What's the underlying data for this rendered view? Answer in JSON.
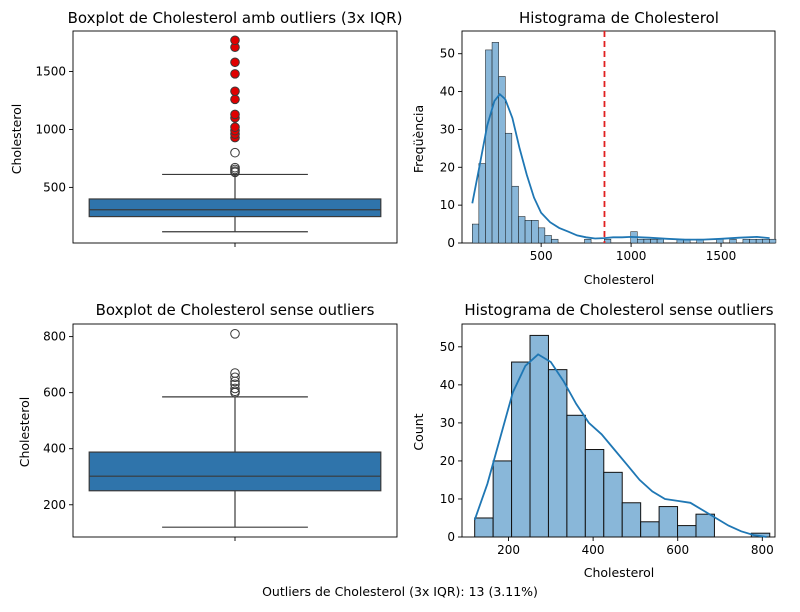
{
  "footer": "Outliers de Cholesterol (3x IQR): 13 (3.11%)",
  "colors": {
    "box": "#2f74ab",
    "hist_fill": "#89b7d9",
    "kde": "#1f77b4",
    "outlier_red": "#e00000",
    "threshold": "#e02020"
  },
  "chart_data": [
    {
      "type": "boxplot",
      "title": "Boxplot de Cholesterol amb outliers (3x IQR)",
      "xlabel": "",
      "ylabel": "Cholesterol",
      "ylim": [
        20,
        1850
      ],
      "yticks": [
        500,
        1000,
        1500
      ],
      "box": {
        "whisker_low": 117,
        "q1": 248,
        "median": 307,
        "q3": 400,
        "whisker_high": 612
      },
      "outliers": [
        630,
        640,
        655,
        670,
        800,
        930,
        960,
        990,
        1020,
        1100,
        1130,
        1260,
        1330,
        1480,
        1580,
        1710,
        1770
      ],
      "outliers_3iqr": [
        930,
        960,
        990,
        1020,
        1100,
        1130,
        1260,
        1330,
        1480,
        1580,
        1710,
        1770
      ]
    },
    {
      "type": "histogram",
      "title": "Histograma de Cholesterol",
      "xlabel": "Cholesterol",
      "ylabel": "Freqüència",
      "xlim": [
        60,
        1800
      ],
      "ylim": [
        0,
        56
      ],
      "xticks": [
        500,
        1000,
        1500
      ],
      "yticks": [
        0,
        10,
        20,
        30,
        40,
        50
      ],
      "bin_start": 117,
      "bin_width": 36.7,
      "counts": [
        5,
        21,
        51,
        53,
        44,
        29,
        15,
        7,
        6,
        6,
        4,
        2,
        1,
        0,
        0,
        0,
        0,
        1,
        0,
        0,
        1,
        0,
        0,
        0,
        3,
        1,
        1,
        1,
        1,
        0,
        0,
        1,
        1,
        0,
        1,
        0,
        0,
        1,
        0,
        1,
        0,
        1,
        1,
        1,
        1,
        1
      ],
      "kde": [
        [
          117,
          10.5
        ],
        [
          160,
          21
        ],
        [
          200,
          31
        ],
        [
          240,
          37.5
        ],
        [
          270,
          39.3
        ],
        [
          300,
          38
        ],
        [
          340,
          33
        ],
        [
          380,
          25
        ],
        [
          420,
          18
        ],
        [
          460,
          12
        ],
        [
          500,
          8
        ],
        [
          550,
          5.5
        ],
        [
          600,
          4
        ],
        [
          650,
          3
        ],
        [
          700,
          2
        ],
        [
          750,
          1.5
        ],
        [
          800,
          1.2
        ],
        [
          850,
          1.3
        ],
        [
          900,
          1.5
        ],
        [
          950,
          1.5
        ],
        [
          1000,
          1.6
        ],
        [
          1050,
          1.5
        ],
        [
          1100,
          1.4
        ],
        [
          1200,
          1.1
        ],
        [
          1300,
          0.9
        ],
        [
          1400,
          0.9
        ],
        [
          1500,
          1.1
        ],
        [
          1600,
          1.4
        ],
        [
          1700,
          1.6
        ],
        [
          1770,
          1.3
        ]
      ],
      "threshold": 852
    },
    {
      "type": "boxplot",
      "title": "Boxplot de Cholesterol sense outliers",
      "xlabel": "",
      "ylabel": "Cholesterol",
      "ylim": [
        85,
        845
      ],
      "yticks": [
        200,
        400,
        600,
        800
      ],
      "box": {
        "whisker_low": 120,
        "q1": 250,
        "median": 302,
        "q3": 388,
        "whisker_high": 585
      },
      "outliers": [
        600,
        605,
        615,
        630,
        640,
        655,
        670,
        810
      ]
    },
    {
      "type": "histogram",
      "title": "Histograma de Cholesterol sense outliers",
      "xlabel": "Cholesterol",
      "ylabel": "Count",
      "xlim": [
        90,
        830
      ],
      "ylim": [
        0,
        56
      ],
      "xticks": [
        200,
        400,
        600,
        800
      ],
      "yticks": [
        0,
        10,
        20,
        30,
        40,
        50
      ],
      "bin_start": 120,
      "bin_width": 43.6,
      "counts": [
        5,
        20,
        46,
        53,
        44,
        32,
        23,
        17,
        9,
        4,
        8,
        3,
        6,
        0,
        0,
        1
      ],
      "kde": [
        [
          120,
          4.5
        ],
        [
          150,
          14
        ],
        [
          180,
          26
        ],
        [
          210,
          38
        ],
        [
          240,
          45
        ],
        [
          270,
          48
        ],
        [
          300,
          46
        ],
        [
          330,
          41
        ],
        [
          360,
          35
        ],
        [
          390,
          30
        ],
        [
          420,
          27
        ],
        [
          450,
          23
        ],
        [
          480,
          19
        ],
        [
          510,
          15
        ],
        [
          540,
          12
        ],
        [
          570,
          10
        ],
        [
          600,
          9.5
        ],
        [
          630,
          9
        ],
        [
          660,
          7
        ],
        [
          690,
          5
        ],
        [
          720,
          3
        ],
        [
          750,
          1.5
        ],
        [
          780,
          0.5
        ],
        [
          810,
          0
        ]
      ]
    }
  ]
}
